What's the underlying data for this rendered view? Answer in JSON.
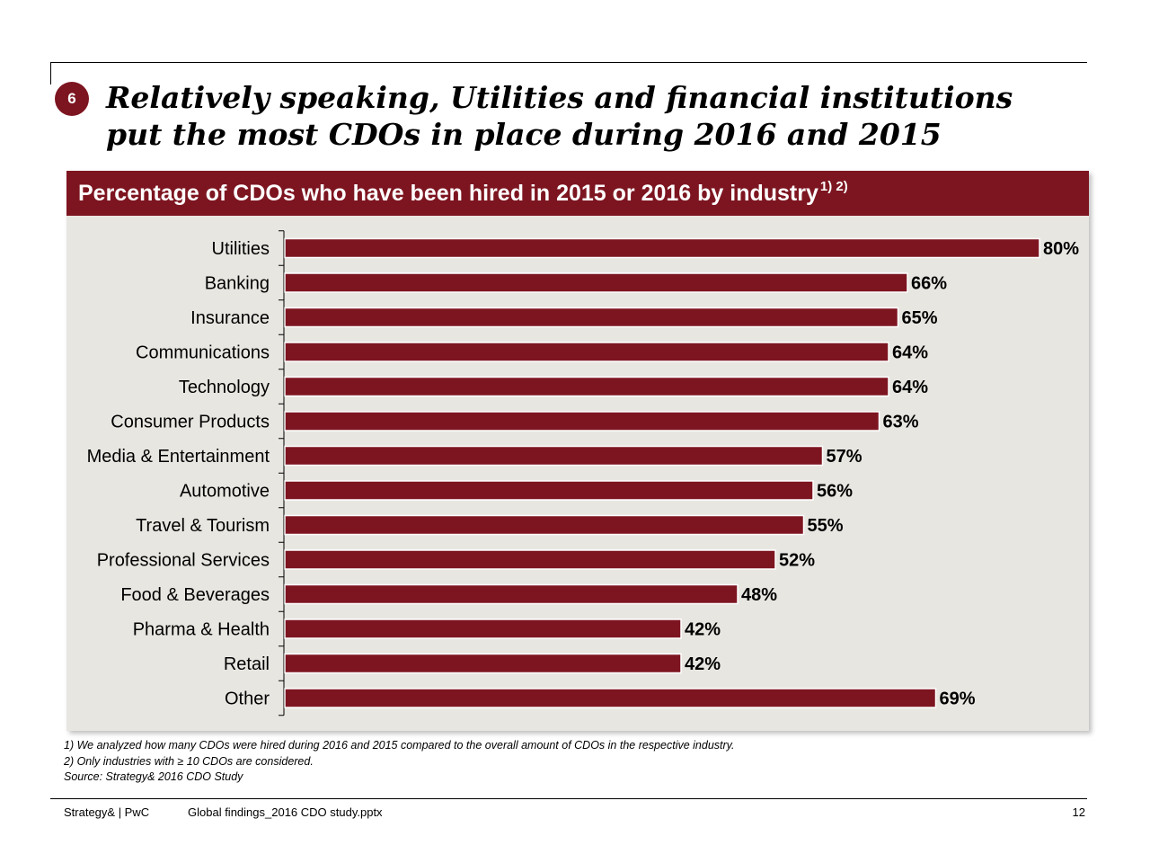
{
  "slide": {
    "badge": "6",
    "headline_line1": "Relatively speaking, Utilities and financial institutions",
    "headline_line2": "put the most CDOs in place during 2016 and 2015"
  },
  "chart_data": {
    "type": "bar",
    "orientation": "horizontal",
    "title": "Percentage of CDOs who have been hired in 2015 or 2016 by industry",
    "title_superscript": "1) 2)",
    "categories": [
      "Utilities",
      "Banking",
      "Insurance",
      "Communications",
      "Technology",
      "Consumer Products",
      "Media & Entertainment",
      "Automotive",
      "Travel & Tourism",
      "Professional Services",
      "Food & Beverages",
      "Pharma & Health",
      "Retail",
      "Other"
    ],
    "values": [
      80,
      66,
      65,
      64,
      64,
      63,
      57,
      56,
      55,
      52,
      48,
      42,
      42,
      69
    ],
    "labels": [
      "80%",
      "66%",
      "65%",
      "64%",
      "64%",
      "63%",
      "57%",
      "56%",
      "55%",
      "52%",
      "48%",
      "42%",
      "42%",
      "69%"
    ],
    "xlim": [
      0,
      80
    ],
    "bar_color": "#7d1520",
    "grid": false,
    "legend": "none"
  },
  "footnotes": {
    "note1": "1) We analyzed how many CDOs were hired during 2016 and 2015 compared to the overall amount of CDOs in the respective industry.",
    "note2": "2) Only industries with ≥ 10 CDOs are considered.",
    "source": "Source: Strategy& 2016 CDO Study"
  },
  "footer": {
    "brand": "Strategy& | PwC",
    "filename": "Global findings_2016 CDO study.pptx",
    "page_number": "12"
  },
  "colors": {
    "accent": "#7d1520",
    "panel_bg": "#e8e6e1"
  }
}
